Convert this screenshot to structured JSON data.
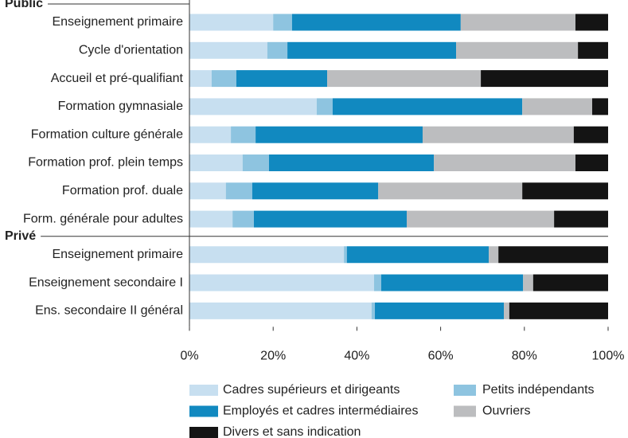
{
  "chart_data": {
    "type": "stacked-bar-horizontal",
    "groups": [
      {
        "name": "Public",
        "categories": [
          "Enseignement primaire",
          "Cycle d'orientation",
          "Accueil et pré-qualifiant",
          "Formation gymnasiale",
          "Formation culture générale",
          "Formation prof. plein temps",
          "Formation prof. duale",
          "Form. générale pour adultes"
        ]
      },
      {
        "name": "Privé",
        "categories": [
          "Enseignement primaire",
          "Enseignement secondaire I",
          "Ens. secondaire II général"
        ]
      }
    ],
    "series": [
      {
        "name": "Cadres supérieurs et dirigeants",
        "color": "#c7dff0",
        "values": [
          20,
          18.6,
          5.3,
          30.4,
          9.9,
          12.7,
          8.7,
          10.3,
          36.9,
          44.1,
          43.5
        ]
      },
      {
        "name": "Petits indépendants",
        "color": "#8ec4e0",
        "values": [
          4.5,
          4.8,
          5.9,
          3.8,
          5.9,
          6.3,
          6.3,
          5.1,
          0.7,
          1.7,
          0.8
        ]
      },
      {
        "name": "Employés et cadres intermédiaires",
        "color": "#1189c0",
        "values": [
          40.3,
          40.3,
          21.7,
          45.3,
          39.9,
          39.4,
          30.1,
          36.5,
          33.9,
          33.9,
          30.8
        ]
      },
      {
        "name": "Ouvriers",
        "color": "#bcbdbf",
        "values": [
          27.4,
          29.1,
          36.7,
          16.7,
          36.1,
          33.8,
          34.4,
          35.2,
          2.3,
          2.4,
          1.3
        ]
      },
      {
        "name": "Divers et sans indication",
        "color": "#141414",
        "values": [
          7.8,
          7.2,
          30.4,
          3.8,
          8.2,
          7.8,
          20.5,
          12.9,
          26.2,
          17.9,
          23.6
        ]
      }
    ],
    "xlim": [
      0,
      100
    ],
    "xticks": [
      {
        "value": 0,
        "label": "0%"
      },
      {
        "value": 20,
        "label": "20%"
      },
      {
        "value": 40,
        "label": "40%"
      },
      {
        "value": 60,
        "label": "60%"
      },
      {
        "value": 80,
        "label": "80%"
      },
      {
        "value": 100,
        "label": "100%"
      }
    ]
  }
}
